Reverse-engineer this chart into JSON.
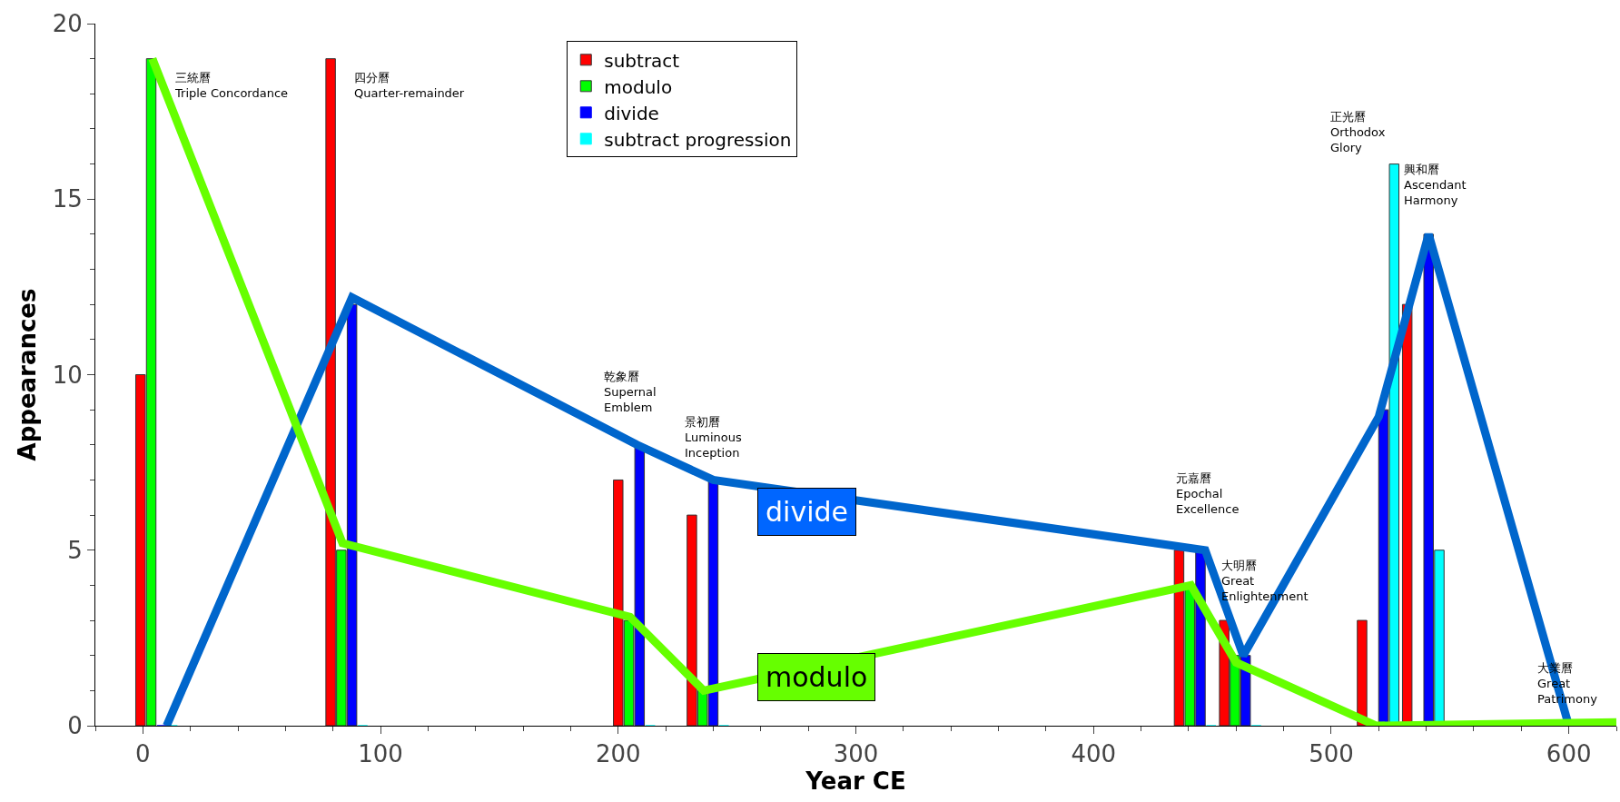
{
  "chart_data": {
    "type": "bar",
    "xlabel": "Year CE",
    "ylabel": "Appearances",
    "xlim": [
      -20,
      620
    ],
    "ylim": [
      0,
      20
    ],
    "xticks": [
      0,
      100,
      200,
      300,
      400,
      500,
      600
    ],
    "yticks": [
      0,
      5,
      10,
      15,
      20
    ],
    "legend": "top",
    "series": [
      {
        "name": "subtract",
        "color": "#ff0000",
        "x": [
          -1,
          79,
          200,
          231,
          436,
          455,
          513,
          532
        ],
        "values": [
          10,
          19,
          7,
          6,
          5,
          3,
          3,
          12
        ]
      },
      {
        "name": "modulo",
        "color": "#00ff00",
        "x": [
          3.5,
          83.5,
          204.5,
          235.5,
          440.5,
          459.5,
          517.5,
          536.5
        ],
        "values": [
          19,
          5,
          3,
          1,
          4,
          2,
          0,
          0
        ]
      },
      {
        "name": "divide",
        "color": "#0000ff",
        "x": [
          8,
          88,
          209,
          240,
          445,
          464,
          522,
          541
        ],
        "values": [
          0,
          12,
          8,
          7,
          5,
          2,
          9,
          14
        ]
      },
      {
        "name": "subtract progression",
        "color": "#00ffff",
        "x": [
          12.5,
          92.5,
          213.5,
          244.5,
          449.5,
          468.5,
          526.5,
          545.5
        ],
        "values": [
          0,
          0,
          0,
          0,
          0,
          0,
          16,
          5
        ]
      },
      {
        "name": "divide",
        "type": "line",
        "color": "#0066cc",
        "x": [
          10,
          88,
          208,
          240,
          447,
          463,
          520,
          541,
          600
        ],
        "values": [
          0,
          12.2,
          8,
          7,
          5,
          2,
          8.8,
          14,
          0
        ]
      },
      {
        "name": "modulo",
        "type": "line",
        "color": "#66ff00",
        "x": [
          4,
          84,
          205,
          236,
          441,
          460,
          519,
          620
        ],
        "values": [
          19,
          5.2,
          3.1,
          1,
          4,
          1.8,
          0,
          0.1
        ]
      }
    ],
    "annotations": [
      "三統曆\nTriple Concordance",
      "四分曆\nQuarter-remainder",
      "乾象曆\nSupernal\nEmblem",
      "景初曆\nLuminous\nInception",
      "元嘉曆\nEpochal\nExcellence",
      "大明曆\nGreat\nEnlightenment",
      "正光曆\nOrthodox\nGlory",
      "興和曆\nAscendant\nHarmony",
      "大業曆\nGreat\nPatrimony"
    ]
  }
}
